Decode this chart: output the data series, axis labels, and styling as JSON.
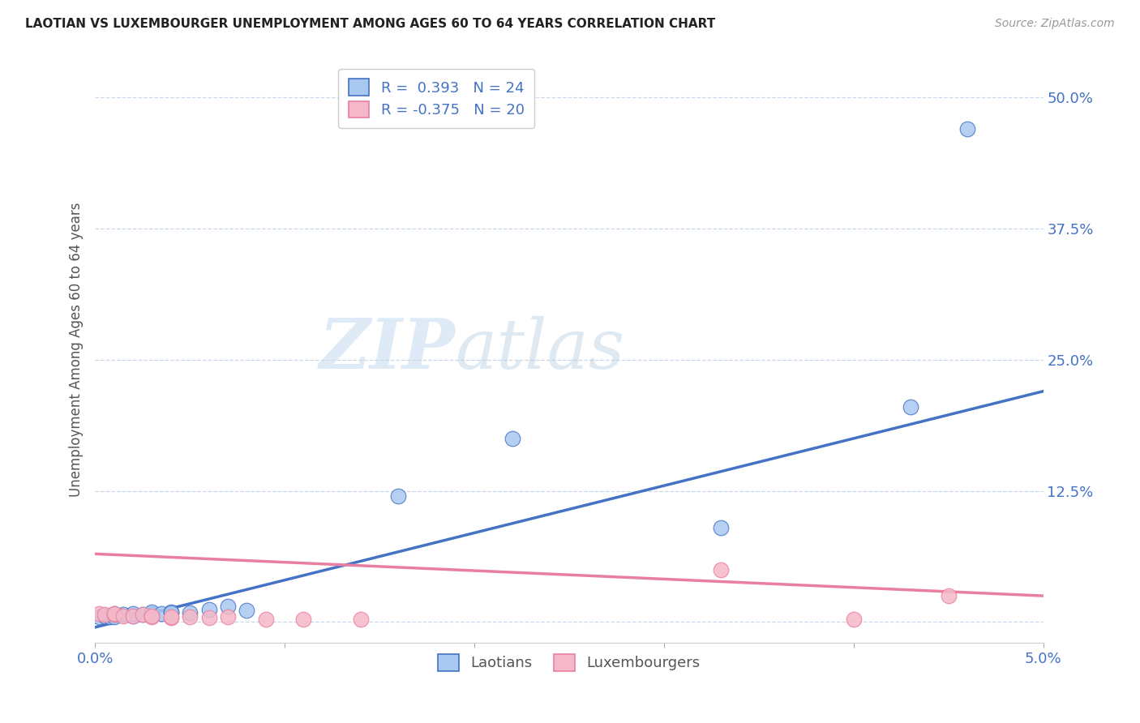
{
  "title": "LAOTIAN VS LUXEMBOURGER UNEMPLOYMENT AMONG AGES 60 TO 64 YEARS CORRELATION CHART",
  "source": "Source: ZipAtlas.com",
  "ylabel": "Unemployment Among Ages 60 to 64 years",
  "xlim": [
    0.0,
    0.05
  ],
  "ylim": [
    -0.02,
    0.54
  ],
  "yticks": [
    0.0,
    0.125,
    0.25,
    0.375,
    0.5
  ],
  "yticklabels": [
    "",
    "12.5%",
    "25.0%",
    "37.5%",
    "50.0%"
  ],
  "xticks": [
    0.0,
    0.01,
    0.02,
    0.03,
    0.04,
    0.05
  ],
  "xticklabels": [
    "0.0%",
    "",
    "",
    "",
    "",
    "5.0%"
  ],
  "laotian_R": "0.393",
  "laotian_N": "24",
  "luxembourger_R": "-0.375",
  "luxembourger_N": "20",
  "laotian_color": "#a8c8f0",
  "luxembourger_color": "#f5b8c8",
  "laotian_line_color": "#4472c4",
  "luxembourger_line_color": "#e97fa0",
  "legend_label_laotian": "Laotians",
  "legend_label_luxembourger": "Luxembourgers",
  "watermark_zip": "ZIP",
  "watermark_atlas": "atlas",
  "laotian_x": [
    0.0002,
    0.0005,
    0.0008,
    0.001,
    0.001,
    0.0015,
    0.002,
    0.002,
    0.0025,
    0.003,
    0.003,
    0.003,
    0.0035,
    0.004,
    0.004,
    0.005,
    0.006,
    0.007,
    0.008,
    0.016,
    0.022,
    0.033,
    0.043,
    0.046
  ],
  "laotian_y": [
    0.005,
    0.006,
    0.005,
    0.005,
    0.008,
    0.007,
    0.006,
    0.008,
    0.007,
    0.007,
    0.008,
    0.01,
    0.008,
    0.01,
    0.009,
    0.009,
    0.012,
    0.015,
    0.011,
    0.12,
    0.175,
    0.09,
    0.205,
    0.47
  ],
  "luxembourger_x": [
    0.0002,
    0.0005,
    0.001,
    0.001,
    0.0015,
    0.002,
    0.0025,
    0.003,
    0.003,
    0.004,
    0.004,
    0.005,
    0.006,
    0.007,
    0.009,
    0.011,
    0.014,
    0.033,
    0.04,
    0.045
  ],
  "luxembourger_y": [
    0.008,
    0.007,
    0.007,
    0.008,
    0.006,
    0.006,
    0.007,
    0.005,
    0.006,
    0.004,
    0.005,
    0.005,
    0.004,
    0.005,
    0.003,
    0.003,
    0.003,
    0.05,
    0.003,
    0.025
  ],
  "lao_line_x0": 0.0,
  "lao_line_y0": -0.005,
  "lao_line_x1": 0.05,
  "lao_line_y1": 0.22,
  "lux_line_x0": 0.0,
  "lux_line_y0": 0.065,
  "lux_line_x1": 0.05,
  "lux_line_y1": 0.025
}
